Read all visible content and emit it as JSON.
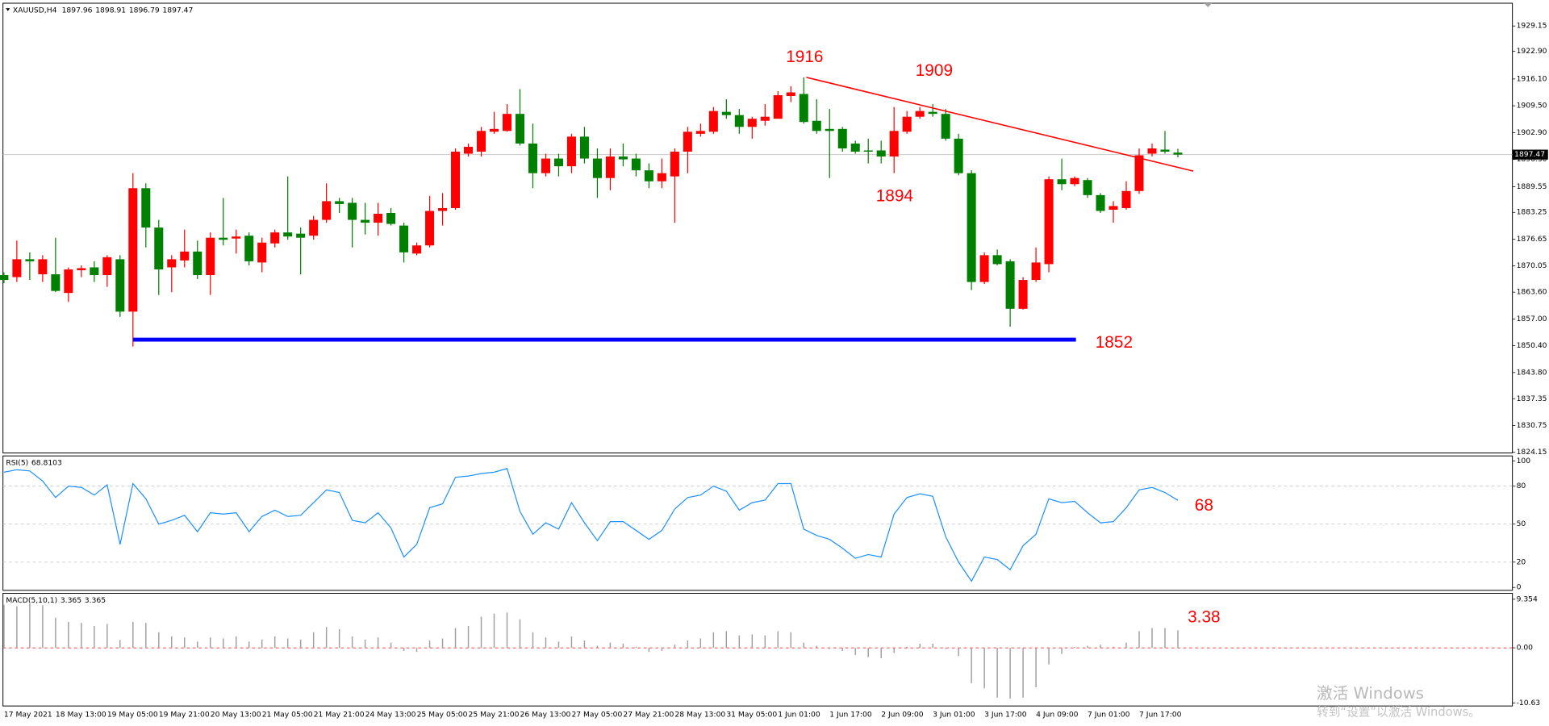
{
  "chart_data": [
    {
      "type": "candlestick",
      "symbol": "XAUUSD,H4",
      "up_color": "#ff0000",
      "down_color": "#008000",
      "current_line_color": "#c0c0c0",
      "annotations": [
        "1916",
        "1909",
        "1894",
        "1852"
      ],
      "lines": [
        {
          "color": "#ff0000",
          "x": [
            62.2,
            92.2
          ],
          "y": [
            1916.5,
            1893.4
          ]
        },
        {
          "color": "#0000ff",
          "x": [
            10,
            83.1
          ],
          "y": [
            1851.9,
            1851.9
          ]
        }
      ],
      "categories": [
        "17 May 2021",
        null,
        null,
        null,
        "18 May 13:00",
        null,
        null,
        null,
        "19 May 05:00",
        null,
        null,
        null,
        "19 May 21:00",
        null,
        null,
        null,
        "20 May 13:00",
        null,
        null,
        null,
        "21 May 05:00",
        null,
        null,
        null,
        "21 May 21:00",
        null,
        null,
        null,
        "24 May 13:00",
        null,
        null,
        null,
        "25 May 05:00",
        null,
        null,
        null,
        "25 May 21:00",
        null,
        null,
        null,
        "26 May 13:00",
        null,
        null,
        null,
        "27 May 05:00",
        null,
        null,
        null,
        "27 May 21:00",
        null,
        null,
        null,
        "28 May 13:00",
        null,
        null,
        null,
        "31 May 05:00",
        null,
        null,
        null,
        "1 Jun 01:00",
        null,
        null,
        null,
        "1 Jun 17:00",
        null,
        null,
        null,
        "2 Jun 09:00",
        null,
        null,
        null,
        "3 Jun 01:00",
        null,
        null,
        null,
        "3 Jun 17:00",
        null,
        null,
        null,
        "4 Jun 09:00",
        null,
        null,
        null,
        "7 Jun 01:00",
        null,
        null,
        null,
        "7 Jun 17:00",
        null,
        null,
        null
      ],
      "open": [
        1867.8,
        1867.3,
        1871.7,
        1868.0,
        1868.0,
        1863.4,
        1869.0,
        1869.7,
        1867.8,
        1871.7,
        1858.8,
        1889.2,
        1879.5,
        1869.7,
        1871.4,
        1873.6,
        1867.8,
        1877.0,
        1876.8,
        1877.5,
        1870.9,
        1875.6,
        1878.3,
        1878.0,
        1877.5,
        1881.4,
        1886.0,
        1885.6,
        1881.4,
        1880.7,
        1883.1,
        1880.0,
        1873.1,
        1875.1,
        1883.6,
        1884.3,
        1897.7,
        1898.2,
        1903.1,
        1903.3,
        1907.5,
        1900.2,
        1892.9,
        1896.5,
        1894.6,
        1901.9,
        1896.5,
        1891.7,
        1897.0,
        1896.5,
        1893.6,
        1890.9,
        1892.1,
        1898.2,
        1902.6,
        1903.1,
        1908.0,
        1907.2,
        1904.3,
        1905.8,
        1906.3,
        1911.9,
        1912.4,
        1905.8,
        1903.8,
        1903.8,
        1900.2,
        1898.5,
        1898.5,
        1897.0,
        1903.1,
        1906.8,
        1908.0,
        1907.5,
        1901.4,
        1892.9,
        1866.1,
        1872.7,
        1871.2,
        1859.5,
        1866.6,
        1870.5,
        1891.4,
        1890.2,
        1891.2,
        1887.5,
        1883.9,
        1884.3,
        1888.5,
        1897.7,
        1898.7,
        1897.96
      ],
      "high": [
        1868.5,
        1876.3,
        1873.4,
        1872.7,
        1877.0,
        1869.7,
        1870.2,
        1871.2,
        1872.7,
        1872.7,
        1892.9,
        1890.4,
        1881.4,
        1872.7,
        1879.0,
        1876.3,
        1878.3,
        1886.8,
        1879.0,
        1878.3,
        1877.0,
        1879.0,
        1892.1,
        1879.5,
        1882.4,
        1890.4,
        1886.8,
        1886.8,
        1885.6,
        1885.6,
        1884.3,
        1880.7,
        1875.8,
        1887.3,
        1888.0,
        1899.0,
        1900.2,
        1904.3,
        1908.0,
        1909.9,
        1913.6,
        1905.1,
        1897.7,
        1897.7,
        1902.6,
        1904.3,
        1899.0,
        1899.0,
        1900.2,
        1897.7,
        1895.3,
        1896.5,
        1899.0,
        1904.3,
        1905.1,
        1909.2,
        1911.1,
        1908.7,
        1906.8,
        1909.9,
        1913.1,
        1914.3,
        1916.5,
        1911.1,
        1908.7,
        1904.3,
        1900.9,
        1901.4,
        1900.9,
        1909.2,
        1908.2,
        1909.2,
        1909.9,
        1908.7,
        1902.6,
        1893.6,
        1873.4,
        1874.1,
        1871.7,
        1867.3,
        1874.6,
        1892.1,
        1896.5,
        1892.1,
        1891.7,
        1888.0,
        1886.0,
        1890.9,
        1899.0,
        1900.2,
        1903.3,
        1898.91
      ],
      "low": [
        1865.8,
        1866.1,
        1866.6,
        1866.1,
        1863.6,
        1861.2,
        1867.3,
        1866.1,
        1864.9,
        1857.5,
        1850.2,
        1874.6,
        1862.9,
        1863.6,
        1869.7,
        1866.8,
        1862.9,
        1875.1,
        1873.1,
        1870.2,
        1868.5,
        1874.6,
        1876.5,
        1868.0,
        1876.5,
        1880.7,
        1883.1,
        1874.6,
        1877.8,
        1877.5,
        1880.0,
        1870.9,
        1872.7,
        1874.6,
        1880.0,
        1883.9,
        1897.0,
        1897.0,
        1902.6,
        1903.1,
        1899.7,
        1889.2,
        1892.1,
        1892.1,
        1892.9,
        1895.3,
        1886.8,
        1888.7,
        1894.6,
        1892.1,
        1889.2,
        1889.2,
        1880.7,
        1892.9,
        1901.9,
        1902.6,
        1906.3,
        1902.6,
        1901.4,
        1904.6,
        1906.3,
        1910.4,
        1905.1,
        1902.6,
        1891.7,
        1898.2,
        1897.7,
        1895.3,
        1895.3,
        1892.9,
        1902.6,
        1906.3,
        1906.8,
        1900.9,
        1892.4,
        1864.1,
        1865.6,
        1870.2,
        1855.1,
        1859.3,
        1866.1,
        1868.5,
        1888.7,
        1889.7,
        1886.8,
        1883.1,
        1880.7,
        1883.9,
        1887.8,
        1897.0,
        1897.7,
        1896.79
      ],
      "close": [
        1866.6,
        1871.7,
        1871.2,
        1871.7,
        1863.9,
        1869.2,
        1869.5,
        1867.8,
        1872.2,
        1858.8,
        1889.2,
        1879.5,
        1869.2,
        1871.7,
        1873.6,
        1867.8,
        1877.0,
        1876.5,
        1877.3,
        1871.2,
        1875.8,
        1878.3,
        1877.3,
        1877.0,
        1881.4,
        1886.0,
        1885.3,
        1881.4,
        1880.7,
        1882.9,
        1880.4,
        1873.4,
        1875.1,
        1883.6,
        1884.3,
        1898.2,
        1899.4,
        1903.3,
        1903.8,
        1907.5,
        1900.2,
        1892.9,
        1896.5,
        1894.6,
        1901.9,
        1896.5,
        1891.7,
        1897.0,
        1896.3,
        1893.6,
        1890.9,
        1892.9,
        1898.2,
        1903.1,
        1903.3,
        1908.2,
        1907.2,
        1904.3,
        1906.3,
        1906.8,
        1912.1,
        1912.8,
        1905.5,
        1903.3,
        1903.3,
        1899.0,
        1898.2,
        1898.2,
        1897.0,
        1903.3,
        1906.8,
        1908.2,
        1907.5,
        1901.4,
        1892.9,
        1866.1,
        1872.7,
        1870.5,
        1859.5,
        1866.6,
        1870.9,
        1891.4,
        1890.2,
        1891.7,
        1887.5,
        1883.6,
        1884.8,
        1888.5,
        1897.3,
        1899.0,
        1898.2,
        1897.47
      ],
      "ylim": [
        1824.0,
        1934.75
      ],
      "yticks": [
        {
          "value": 1929.15,
          "label": "1929.15"
        },
        {
          "value": 1922.9,
          "label": "1922.90"
        },
        {
          "value": 1916.1,
          "label": "1916.10"
        },
        {
          "value": 1909.5,
          "label": "1909.50"
        },
        {
          "value": 1902.9,
          "label": "1902.90"
        },
        {
          "value": 1896.3,
          "label": "1896.30"
        },
        {
          "value": 1889.55,
          "label": "1889.55"
        },
        {
          "value": 1883.25,
          "label": "1883.25"
        },
        {
          "value": 1876.65,
          "label": "1876.65"
        },
        {
          "value": 1870.05,
          "label": "1870.05"
        },
        {
          "value": 1863.6,
          "label": "1863.60"
        },
        {
          "value": 1857,
          "label": "1857.00"
        },
        {
          "value": 1850.4,
          "label": "1850.40"
        },
        {
          "value": 1843.8,
          "label": "1843.80"
        },
        {
          "value": 1837.35,
          "label": "1837.35"
        },
        {
          "value": 1830.75,
          "label": "1830.75"
        },
        {
          "value": 1824.15,
          "label": "1824.15"
        }
      ]
    },
    {
      "type": "line",
      "name": "RSI(5)",
      "color": "#1e90ff",
      "grid_color": "#c0c0c0",
      "annotations": [
        "68"
      ],
      "values": [
        91,
        93,
        92,
        84,
        71,
        80,
        79,
        73,
        81,
        34,
        82,
        70,
        50,
        53,
        57,
        44,
        59,
        58,
        59,
        44,
        56,
        61,
        56,
        57,
        67,
        77,
        75,
        53,
        51,
        59,
        47,
        24,
        34,
        63,
        66,
        87,
        88,
        90,
        91,
        94,
        60,
        42,
        51,
        46,
        67,
        51,
        37,
        52,
        52,
        45,
        38,
        45,
        62,
        71,
        73,
        80,
        76,
        61,
        67,
        69,
        82,
        82,
        46,
        41,
        38,
        31,
        23,
        26,
        24,
        58,
        71,
        74,
        72,
        40,
        20,
        5,
        24,
        22,
        14,
        33,
        42,
        70,
        67,
        68,
        59,
        51,
        52,
        63,
        77,
        79,
        75,
        68.8103
      ],
      "ylim": [
        -2.3,
        103.9
      ],
      "yticks": [
        100,
        80,
        50,
        20,
        0
      ]
    },
    {
      "type": "bar",
      "name": "MACD(5,10,1)",
      "color": "#a0a0a0",
      "grid_color": "#ff0000",
      "annotations": [
        "3.38"
      ],
      "values": [
        8.3,
        8.0,
        8.5,
        8.2,
        5.8,
        5.0,
        4.8,
        4.2,
        4.6,
        1.5,
        5.0,
        4.8,
        3.0,
        2.2,
        2.0,
        1.2,
        2.0,
        1.8,
        2.2,
        1.2,
        1.6,
        2.2,
        1.8,
        1.6,
        3.0,
        4.0,
        3.6,
        2.2,
        1.6,
        2.0,
        1.0,
        -0.6,
        -0.8,
        1.4,
        1.8,
        3.8,
        4.2,
        6.0,
        6.6,
        6.8,
        5.5,
        3.0,
        2.0,
        1.2,
        2.2,
        1.4,
        0.4,
        1.0,
        0.8,
        0.2,
        -0.8,
        -0.6,
        0.6,
        1.4,
        1.8,
        3.0,
        3.2,
        2.4,
        2.6,
        2.4,
        3.2,
        3.0,
        1.0,
        0.4,
        -0.2,
        -0.6,
        -1.4,
        -1.8,
        -2.0,
        -1.0,
        0.2,
        0.8,
        0.8,
        -0.2,
        -1.6,
        -6.8,
        -7.8,
        -9.6,
        -9.8,
        -9.6,
        -7.6,
        -3.2,
        -1.2,
        0.2,
        0.4,
        0.6,
        0.2,
        1.0,
        3.2,
        3.8,
        3.8,
        3.365
      ],
      "ylim": [
        -11.2,
        10.5
      ],
      "yticks": [
        9.354,
        {
          "value": 0,
          "label": "0.00"
        },
        -10.63
      ]
    }
  ],
  "watermark": {
    "title": "激活 Windows",
    "subtitle": "转到“设置”以激活 Windows。"
  }
}
